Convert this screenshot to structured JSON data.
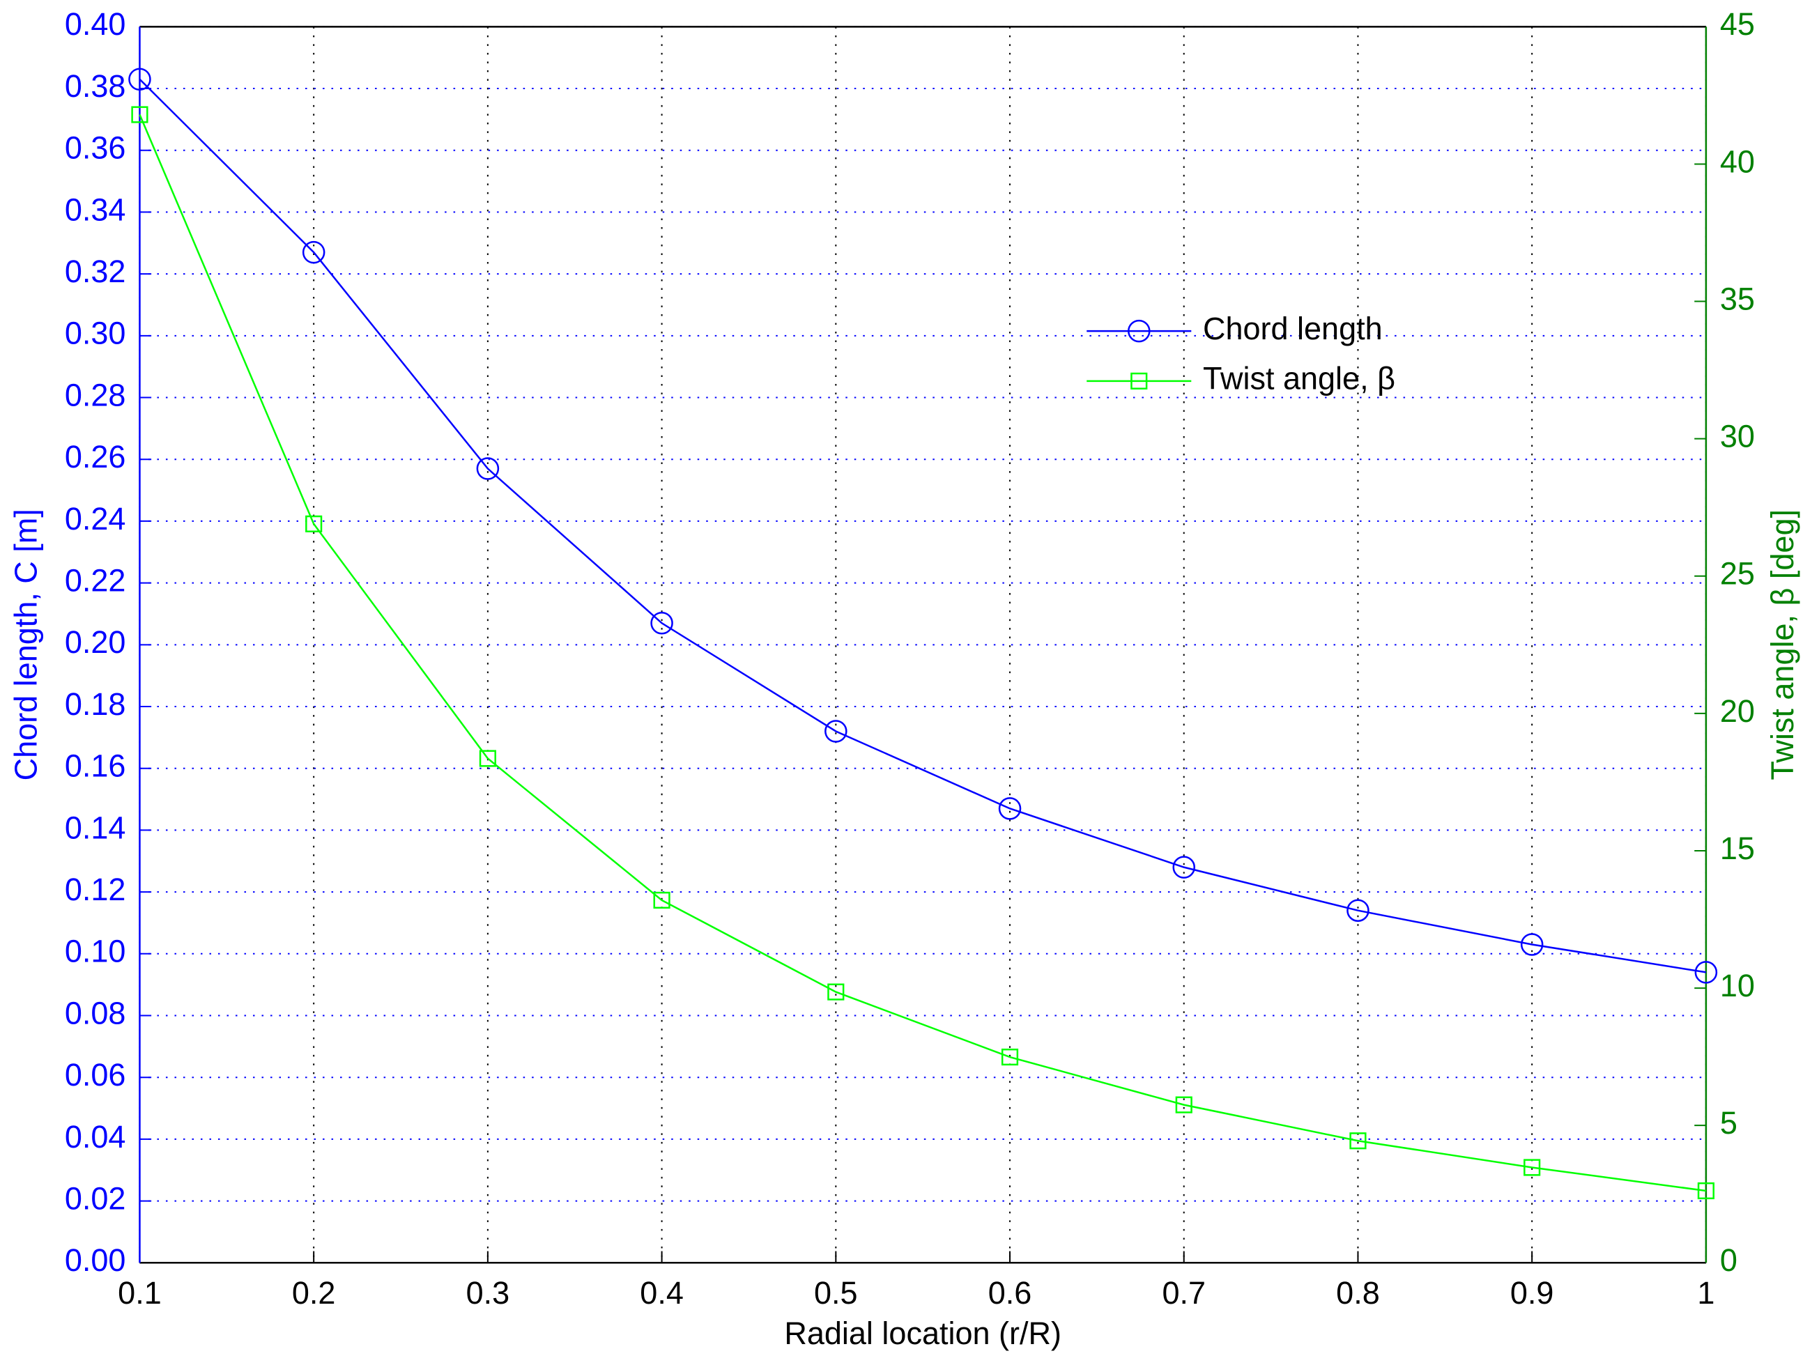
{
  "chart_data": {
    "type": "line",
    "xlabel": "Radial location (r/R)",
    "ylabel": "Chord length, C [m]",
    "y2label": "Twist angle, β [deg]",
    "x": [
      0.1,
      0.2,
      0.3,
      0.4,
      0.5,
      0.6,
      0.7,
      0.8,
      0.9,
      1
    ],
    "series": [
      {
        "name": "Chord length",
        "color": "#0000ff",
        "marker": "circle",
        "axis": "y",
        "values": [
          0.383,
          0.327,
          0.257,
          0.207,
          0.172,
          0.147,
          0.128,
          0.114,
          0.103,
          0.094
        ]
      },
      {
        "name": "Twist angle, β",
        "color": "#00ff00",
        "marker": "square",
        "axis": "y2",
        "values": [
          41.8,
          26.9,
          18.36,
          13.2,
          9.86,
          7.49,
          5.75,
          4.44,
          3.47,
          2.62
        ]
      }
    ],
    "xlim": [
      0.1,
      1
    ],
    "xticks": [
      0.1,
      0.2,
      0.3,
      0.4,
      0.5,
      0.6,
      0.7,
      0.8,
      0.9,
      1
    ],
    "ylim": [
      0,
      0.4
    ],
    "yticks": [
      {
        "value": 0,
        "label": "0.00"
      },
      {
        "value": 0.02,
        "label": "0.02"
      },
      {
        "value": 0.04,
        "label": "0.04"
      },
      {
        "value": 0.06,
        "label": "0.06"
      },
      {
        "value": 0.08,
        "label": "0.08"
      },
      {
        "value": 0.1,
        "label": "0.10"
      },
      {
        "value": 0.12,
        "label": "0.12"
      },
      {
        "value": 0.14,
        "label": "0.14"
      },
      {
        "value": 0.16,
        "label": "0.16"
      },
      {
        "value": 0.18,
        "label": "0.18"
      },
      {
        "value": 0.2,
        "label": "0.20"
      },
      {
        "value": 0.22,
        "label": "0.22"
      },
      {
        "value": 0.24,
        "label": "0.24"
      },
      {
        "value": 0.26,
        "label": "0.26"
      },
      {
        "value": 0.28,
        "label": "0.28"
      },
      {
        "value": 0.3,
        "label": "0.30"
      },
      {
        "value": 0.32,
        "label": "0.32"
      },
      {
        "value": 0.34,
        "label": "0.34"
      },
      {
        "value": 0.36,
        "label": "0.36"
      },
      {
        "value": 0.38,
        "label": "0.38"
      },
      {
        "value": 0.4,
        "label": "0.40"
      }
    ],
    "y2lim": [
      0,
      45
    ],
    "y2ticks": [
      0,
      5,
      10,
      15,
      20,
      25,
      30,
      35,
      40,
      45
    ],
    "y_axis_color": "#0000ff",
    "y2_axis_color": "#008000",
    "grid": true
  }
}
